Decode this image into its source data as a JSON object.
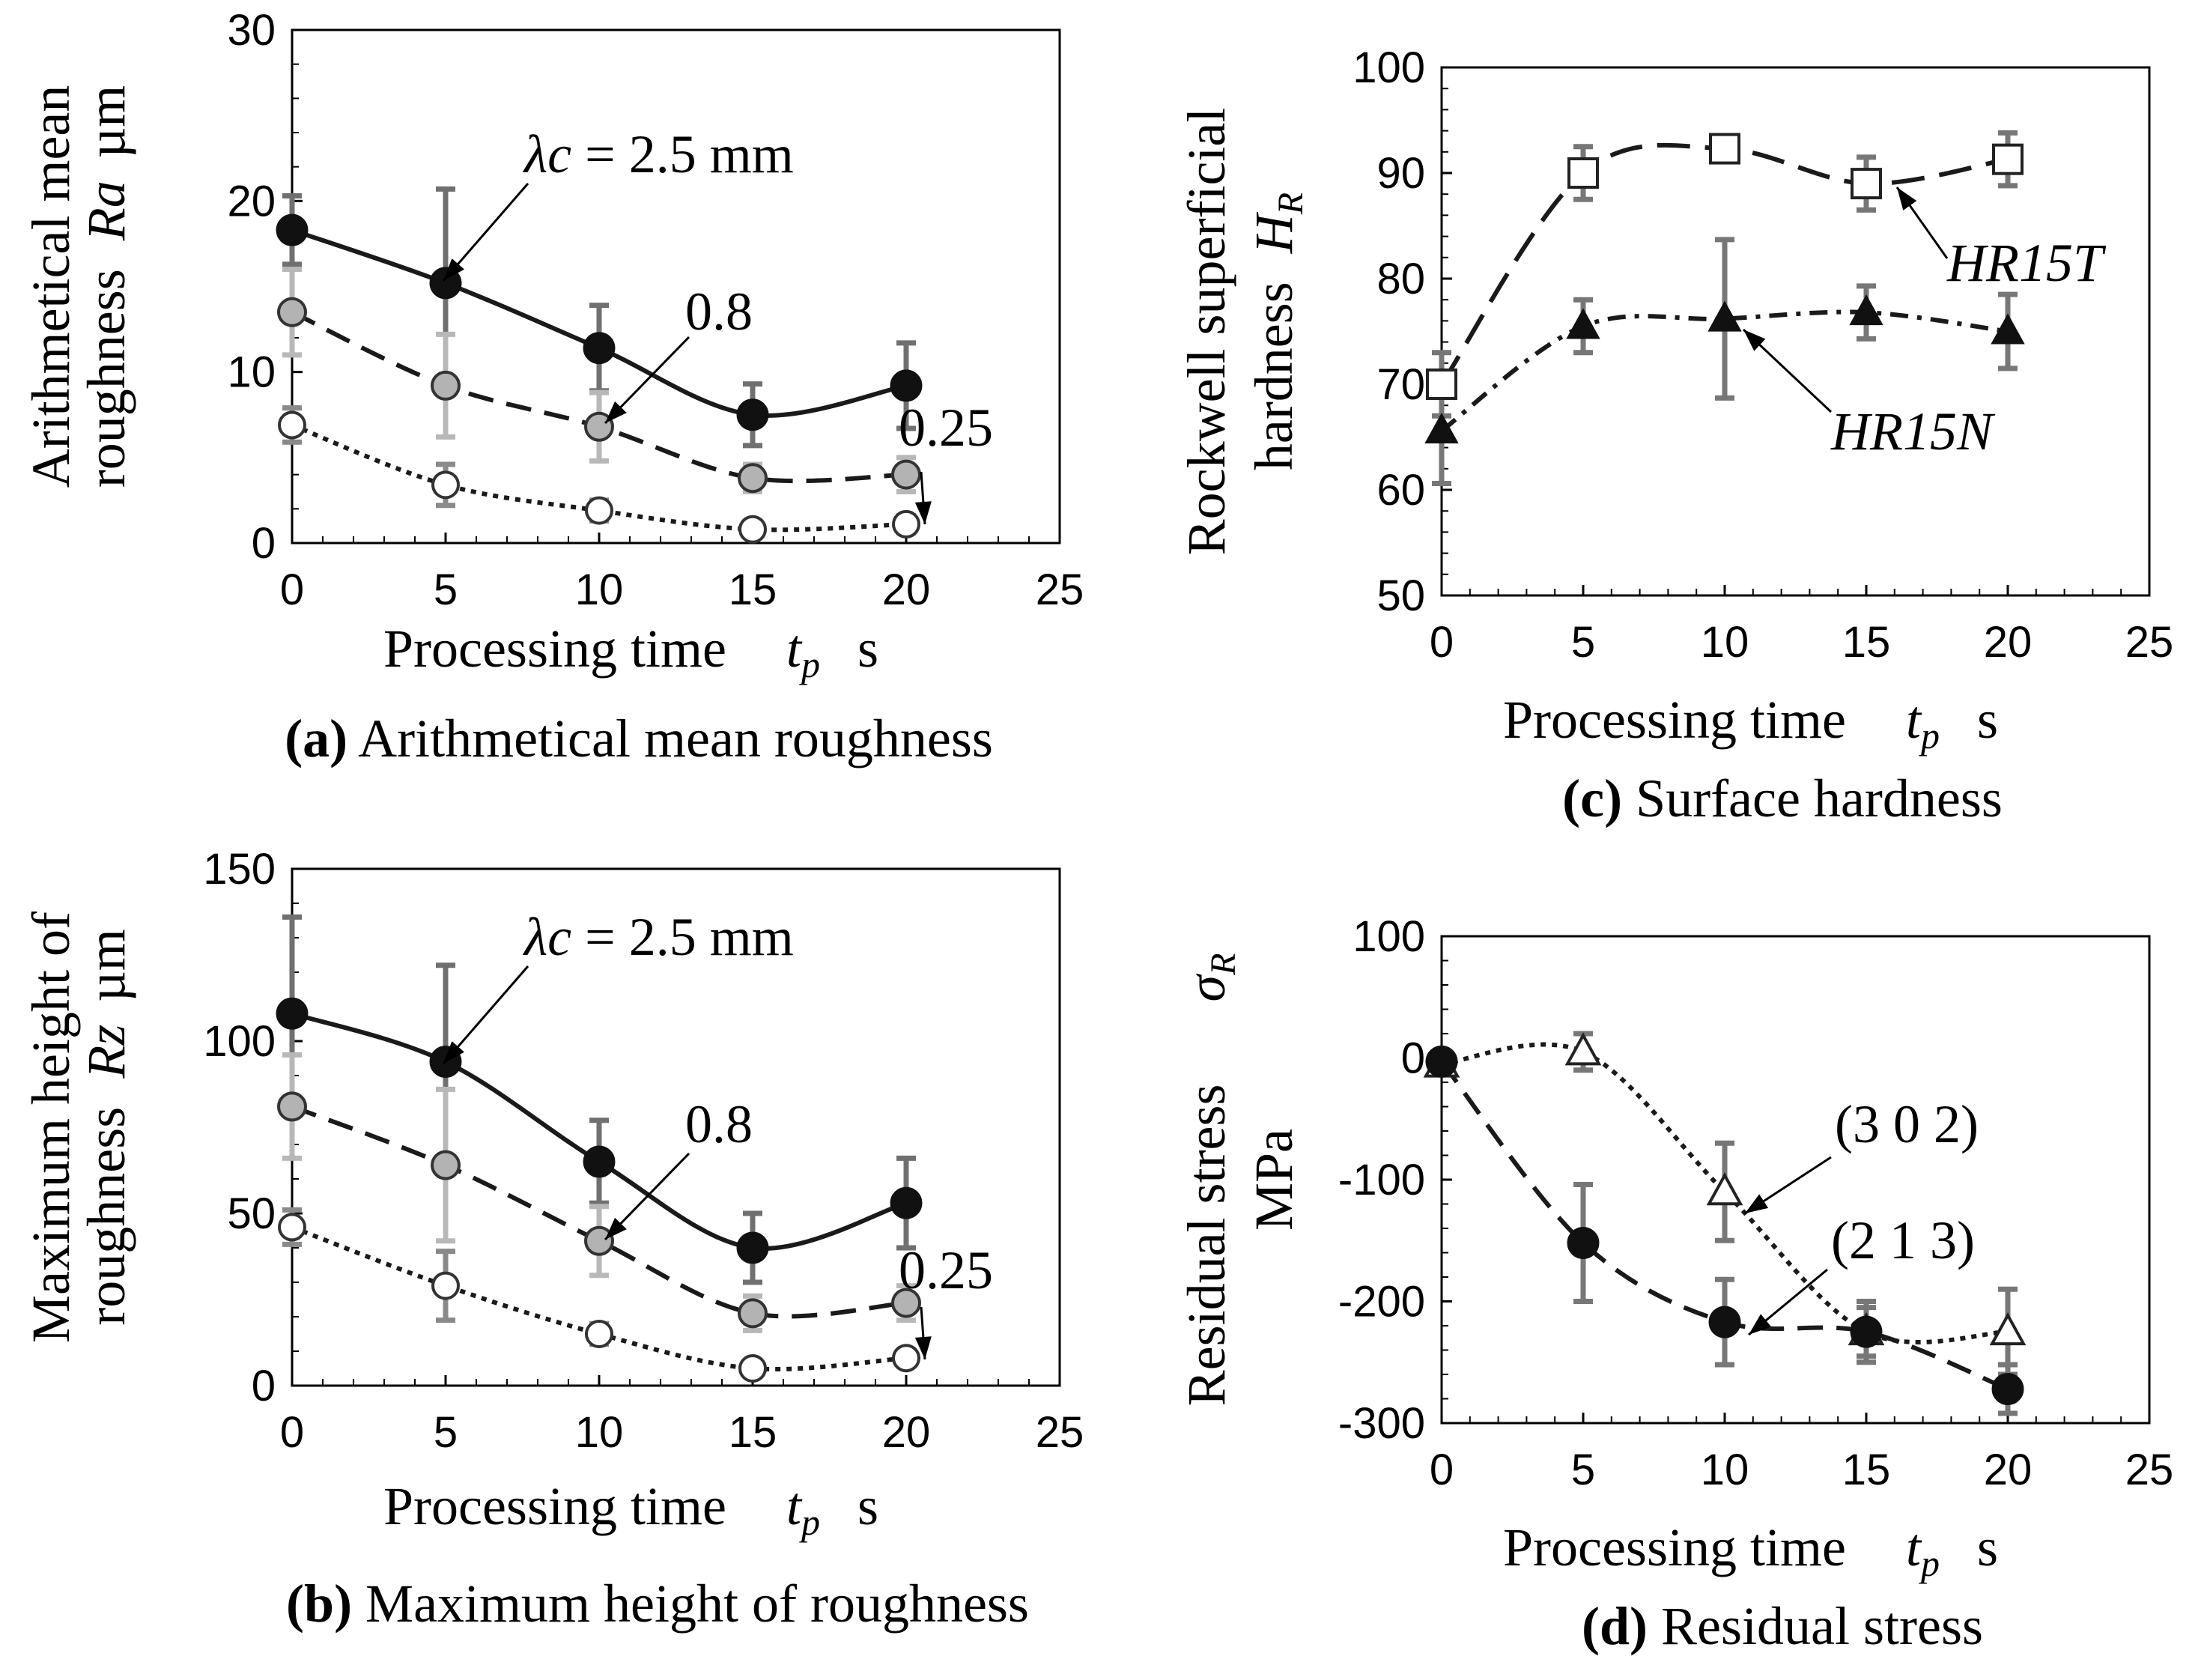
{
  "figure": {
    "chart_data": [
      {
        "id": "a",
        "type": "line",
        "title": "Arithmetical mean roughness",
        "caption_letter": "(a)",
        "xlabel_main": "Processing time",
        "xlabel_sym": "t",
        "xlabel_sub": "p",
        "xlabel_unit": "s",
        "ylabel_line1": "Arithmetical mean",
        "ylabel_line2_pre": "roughness",
        "ylabel_sym": "Ra",
        "ylabel_unit": "µm",
        "xlim": [
          0,
          25
        ],
        "ylim": [
          0,
          30
        ],
        "xticks": [
          "0",
          "5",
          "10",
          "15",
          "20",
          "25"
        ],
        "yticks": [
          "0",
          "10",
          "20",
          "30"
        ],
        "x": [
          0,
          5,
          10,
          15,
          20
        ],
        "series": [
          {
            "name": "λc = 2.5 mm",
            "marker": "filled-circle",
            "line": "solid",
            "values": [
              18.3,
              15.2,
              11.4,
              7.5,
              9.2
            ],
            "errors": [
              2.0,
              5.5,
              2.5,
              1.8,
              2.5
            ]
          },
          {
            "name": "0.8",
            "marker": "gray-circle",
            "line": "dashed",
            "values": [
              13.5,
              9.2,
              6.8,
              3.8,
              4.0
            ],
            "errors": [
              2.5,
              3.0,
              2.0,
              0.8,
              1.0
            ]
          },
          {
            "name": "0.25",
            "marker": "open-circle",
            "line": "dotted",
            "values": [
              6.9,
              3.4,
              1.9,
              0.8,
              1.1
            ],
            "errors": [
              1.0,
              1.2,
              0.6,
              0.4,
              0.5
            ]
          }
        ],
        "annotations": [
          {
            "lambda_sym": "λc",
            "text": " = 2.5 mm"
          },
          {
            "text": "0.8"
          },
          {
            "text": "0.25"
          }
        ]
      },
      {
        "id": "b",
        "type": "line",
        "title": "Maximum height of roughness",
        "caption_letter": "(b)",
        "xlabel_main": "Processing time",
        "xlabel_sym": "t",
        "xlabel_sub": "p",
        "xlabel_unit": "s",
        "ylabel_line1": "Maximum height of",
        "ylabel_line2_pre": "roughness",
        "ylabel_sym": "Rz",
        "ylabel_unit": "µm",
        "xlim": [
          0,
          25
        ],
        "ylim": [
          0,
          150
        ],
        "xticks": [
          "0",
          "5",
          "10",
          "15",
          "20",
          "25"
        ],
        "yticks": [
          "0",
          "50",
          "100",
          "150"
        ],
        "x": [
          0,
          5,
          10,
          15,
          20
        ],
        "series": [
          {
            "name": "λc = 2.5 mm",
            "marker": "filled-circle",
            "line": "solid",
            "values": [
              108,
              94,
              65,
              40,
              53
            ],
            "errors": [
              28,
              28,
              12,
              10,
              13
            ]
          },
          {
            "name": "0.8",
            "marker": "gray-circle",
            "line": "dashed",
            "values": [
              81,
              64,
              42,
              21,
              24
            ],
            "errors": [
              15,
              22,
              10,
              5,
              5
            ]
          },
          {
            "name": "0.25",
            "marker": "open-circle",
            "line": "dotted",
            "values": [
              46,
              29,
              15,
              5,
              8
            ],
            "errors": [
              5,
              10,
              3,
              2,
              2
            ]
          }
        ],
        "annotations": [
          {
            "lambda_sym": "λc",
            "text": " = 2.5 mm"
          },
          {
            "text": "0.8"
          },
          {
            "text": "0.25"
          }
        ]
      },
      {
        "id": "c",
        "type": "line",
        "title": "Surface hardness",
        "caption_letter": "(c)",
        "xlabel_main": "Processing time",
        "xlabel_sym": "t",
        "xlabel_sub": "p",
        "xlabel_unit": "s",
        "ylabel_line1": "Rockwell superficial",
        "ylabel_line2_pre": "hardness",
        "ylabel_sym": "H",
        "ylabel_sub": "R",
        "xlim": [
          0,
          25
        ],
        "ylim": [
          50,
          100
        ],
        "xticks": [
          "0",
          "5",
          "10",
          "15",
          "20",
          "25"
        ],
        "yticks": [
          "50",
          "60",
          "70",
          "80",
          "90",
          "100"
        ],
        "x": [
          0,
          5,
          10,
          15,
          20
        ],
        "series": [
          {
            "name": "HR15T",
            "marker": "open-square",
            "line": "long-dash",
            "values": [
              70,
              90,
              92.3,
              89,
              91.3
            ],
            "errors": [
              3,
              2.5,
              1.2,
              2.5,
              2.5
            ]
          },
          {
            "name": "HR15N",
            "marker": "filled-triangle",
            "line": "dash-dot",
            "values": [
              65.6,
              75.5,
              76.2,
              76.8,
              75
            ],
            "errors": [
              5,
              2.5,
              7.5,
              2.5,
              3.5
            ]
          }
        ],
        "annotations": [
          {
            "text": "HR15T"
          },
          {
            "text": "HR15N"
          }
        ]
      },
      {
        "id": "d",
        "type": "line",
        "title": "Residual stress",
        "caption_letter": "(d)",
        "xlabel_main": "Processing time",
        "xlabel_sym": "t",
        "xlabel_sub": "p",
        "xlabel_unit": "s",
        "ylabel_line1": "Residual stress",
        "ylabel_sym": "σ",
        "ylabel_sub": "R",
        "ylabel_unit": "MPa",
        "xlim": [
          0,
          25
        ],
        "ylim": [
          -300,
          100
        ],
        "xticks": [
          "0",
          "5",
          "10",
          "15",
          "20",
          "25"
        ],
        "yticks": [
          "-300",
          "-200",
          "-100",
          "0",
          "100"
        ],
        "x": [
          0,
          5,
          10,
          15,
          20
        ],
        "series": [
          {
            "name": "(3 0 2)",
            "marker": "open-triangle",
            "line": "dotted",
            "values": [
              -5,
              5,
              -110,
              -225,
              -225
            ],
            "errors": [
              8,
              15,
              40,
              25,
              35
            ]
          },
          {
            "name": "(2 1 3)",
            "marker": "filled-circle",
            "line": "dashed",
            "values": [
              -3,
              -152,
              -217,
              -225,
              -272
            ],
            "errors": [
              8,
              48,
              35,
              20,
              20
            ]
          }
        ],
        "annotations": [
          {
            "text": "(3 0 2)"
          },
          {
            "text": "(2 1 3)"
          }
        ]
      }
    ]
  }
}
